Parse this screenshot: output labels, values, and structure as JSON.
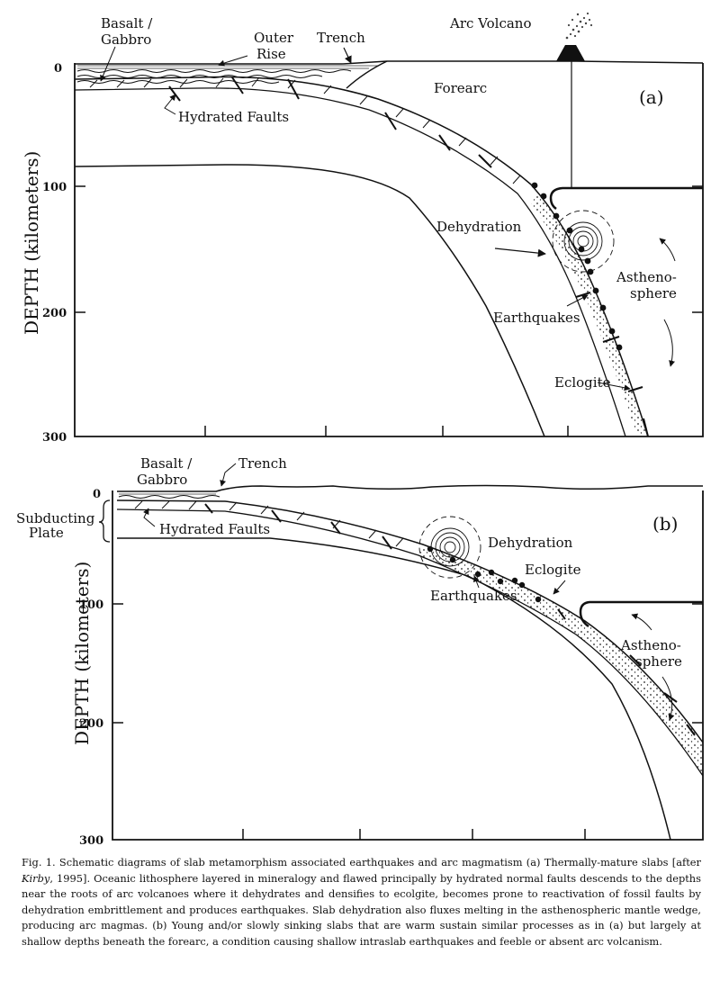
{
  "panel_a": {
    "label": "(a)",
    "axis_label": "DEPTH (kilometers)",
    "ticks": [
      "0",
      "100",
      "200",
      "300"
    ],
    "labels": {
      "basalt": "Basalt /",
      "gabbro": "Gabbro",
      "outer_rise_1": "Outer",
      "outer_rise_2": "Rise",
      "trench": "Trench",
      "arc_volcano": "Arc Volcano",
      "forearc": "Forearc",
      "hydrated_faults": "Hydrated Faults",
      "dehydration": "Dehydration",
      "asthenosphere_1": "Astheno-",
      "asthenosphere_2": "sphere",
      "earthquakes": "Earthquakes",
      "eclogite": "Eclogite"
    }
  },
  "panel_b": {
    "label": "(b)",
    "axis_label": "DEPTH (kilometers)",
    "ticks": [
      "0",
      "100",
      "200",
      "300"
    ],
    "labels": {
      "basalt": "Basalt /",
      "gabbro": "Gabbro",
      "trench": "Trench",
      "subducting_1": "Subducting",
      "subducting_2": "Plate",
      "hydrated_faults": "Hydrated Faults",
      "dehydration": "Dehydration",
      "eclogite": "Eclogite",
      "earthquakes": "Earthquakes",
      "asthenosphere_1": "Astheno-",
      "asthenosphere_2": "sphere"
    }
  },
  "caption": {
    "part1": "Fig. 1. Schematic diagrams of slab metamorphism associated earthquakes and arc magmatism (a) Thermally-mature slabs [after ",
    "cite": "Kirby",
    "part2": ", 1995].  Oceanic lithosphere layered in mineralogy and flawed principally by hydrated normal faults descends to the depths near the roots of arc volcanoes where it dehydrates and densifies to ecolgite, becomes prone to reactivation of fossil faults by dehydration embrittlement and produces earthquakes.  Slab dehydration also fluxes melting in the asthenospheric mantle wedge, producing arc magmas.  (b) Young and/or slowly sinking slabs that are warm sustain similar processes as in (a) but largely at shallow depths beneath the forearc, a condition causing shallow intraslab earthquakes and feeble or absent arc volcanism."
  }
}
